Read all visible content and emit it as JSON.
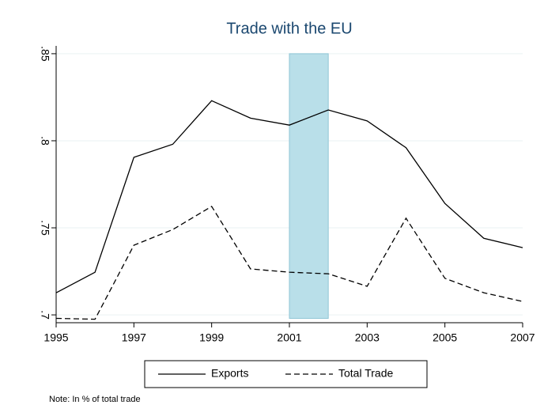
{
  "chart_data": {
    "type": "line",
    "title": "Trade with the EU",
    "x": [
      1995,
      1996,
      1997,
      1998,
      1999,
      2000,
      2001,
      2002,
      2003,
      2004,
      2005,
      2006,
      2007
    ],
    "series": [
      {
        "name": "Exports",
        "color": "#000000",
        "line_style": "solid",
        "values": [
          0.7127,
          0.7245,
          0.7905,
          0.798,
          0.823,
          0.813,
          0.809,
          0.8177,
          0.8114,
          0.796,
          0.764,
          0.744,
          0.7386
        ]
      },
      {
        "name": "Total Trade",
        "color": "#000000",
        "line_style": "dashed",
        "values": [
          0.698,
          0.6975,
          0.74,
          0.749,
          0.7623,
          0.7264,
          0.7245,
          0.7236,
          0.7164,
          0.7555,
          0.721,
          0.7127,
          0.7077
        ]
      }
    ],
    "shaded_region": {
      "x": [
        2001,
        2002
      ],
      "y": [
        0.698,
        0.85
      ],
      "color": "#b9dfe9"
    },
    "xlim": [
      1995,
      2007
    ],
    "xticks": [
      1995,
      1997,
      1999,
      2001,
      2003,
      2005,
      2007
    ],
    "ylim": [
      0.6955,
      0.8545
    ],
    "yticks": [
      {
        "value": 0.7,
        "label": ".7"
      },
      {
        "value": 0.75,
        "label": ".75"
      },
      {
        "value": 0.8,
        "label": ".8"
      },
      {
        "value": 0.85,
        "label": ".85"
      }
    ],
    "grid": true,
    "legend_position": "bottom",
    "note": "Note: In % of total trade"
  }
}
